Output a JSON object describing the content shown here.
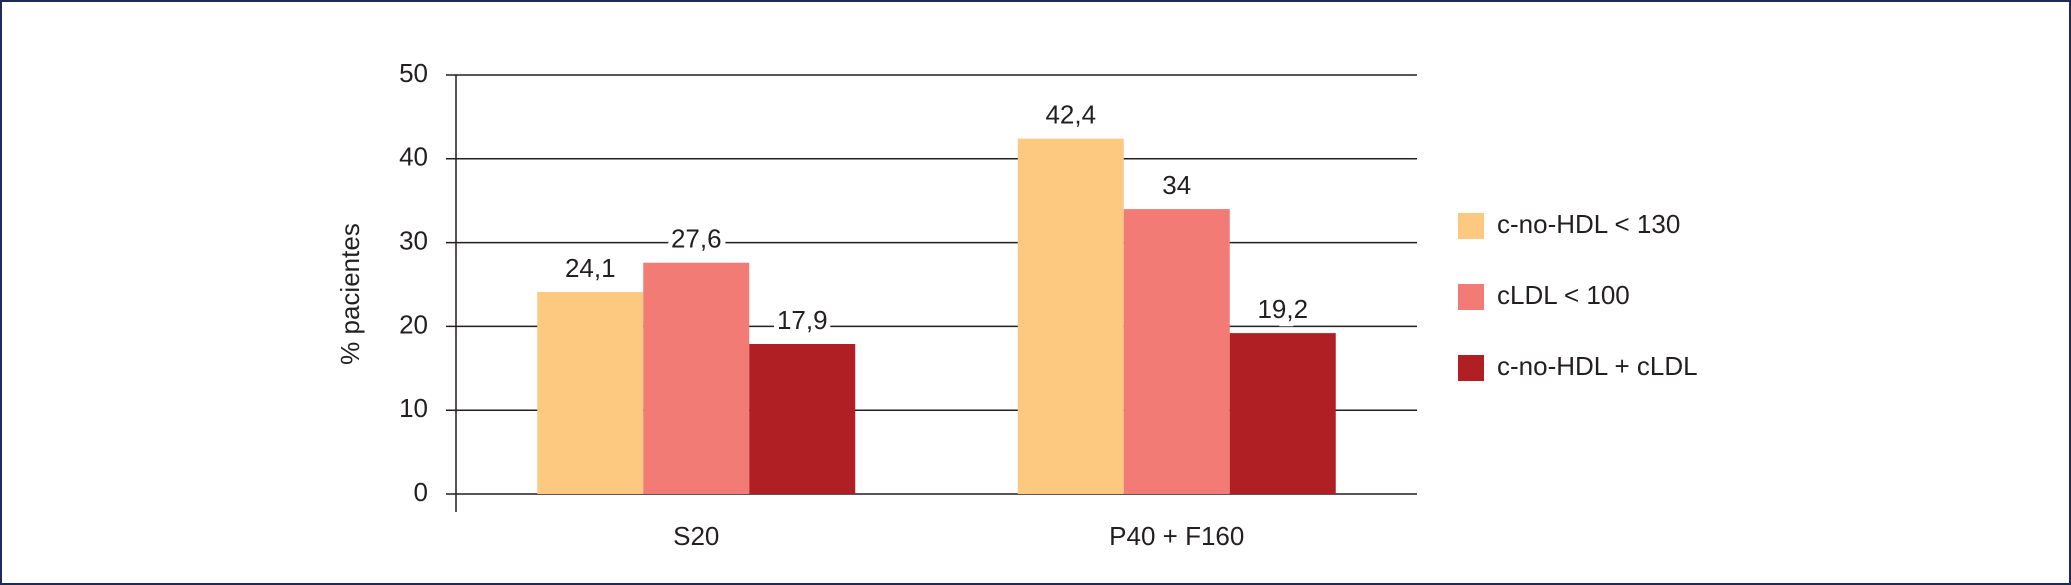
{
  "chart_data": {
    "type": "bar",
    "y_label": "% pacientes",
    "categories": [
      "S20",
      "P40 + F160"
    ],
    "series": [
      {
        "name": "c-no-HDL < 130",
        "color": "#fdc981",
        "values": [
          24.1,
          42.4
        ],
        "value_labels": [
          "24,1",
          "42,4"
        ]
      },
      {
        "name": "cLDL < 100",
        "color": "#f37b76",
        "values": [
          27.6,
          34
        ],
        "value_labels": [
          "27,6",
          "34"
        ]
      },
      {
        "name": "c-no-HDL + cLDL",
        "color": "#b01f24",
        "values": [
          17.9,
          19.2
        ],
        "value_labels": [
          "17,9",
          "19,2"
        ]
      }
    ],
    "ylim": [
      0,
      50
    ],
    "yticks": [
      0,
      10,
      20,
      30,
      40,
      50
    ],
    "grid": true,
    "legend": "right"
  }
}
